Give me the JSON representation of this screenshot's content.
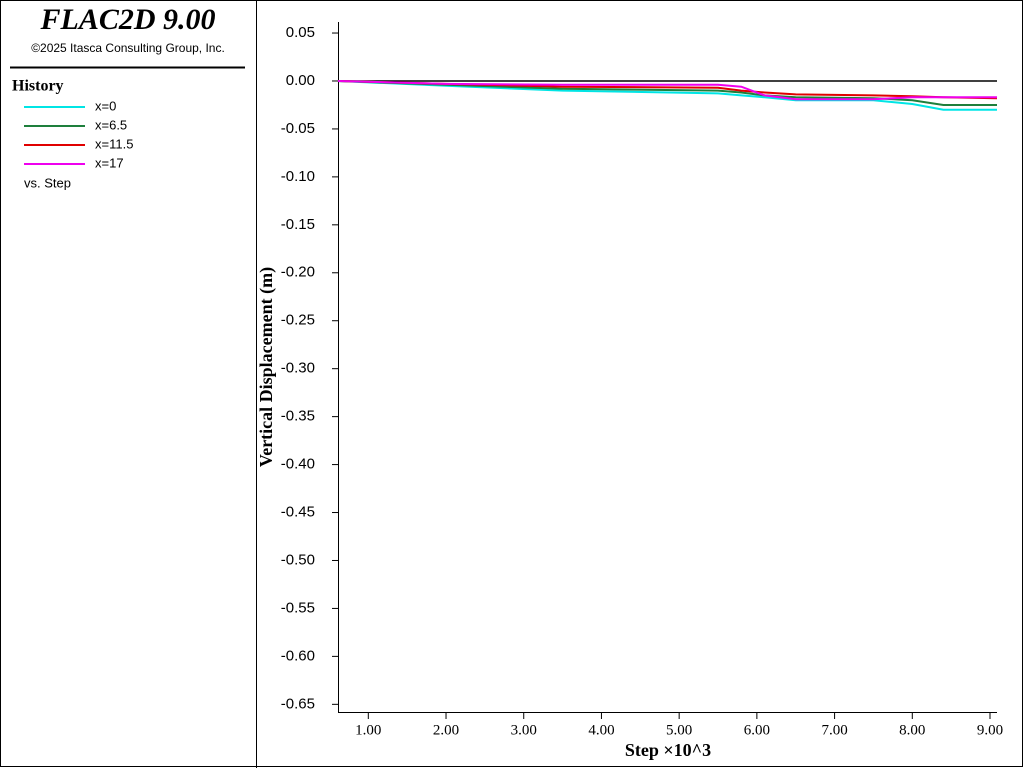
{
  "chart_data": {
    "type": "line",
    "title": "FLAC2D 9.00",
    "subtitle": "©2025 Itasca Consulting Group, Inc.",
    "legend_title": "History",
    "legend_footer": "vs. Step",
    "xlabel": "Step ×10^3",
    "ylabel": "Vertical Displacement (m)",
    "x": [
      0.61,
      2,
      3.5,
      5.5,
      5.8,
      6.1,
      6.5,
      7.5,
      8,
      8.4,
      9.09
    ],
    "series": [
      {
        "name": "x=0",
        "color": "#00e5e5",
        "values": [
          0,
          -0.005,
          -0.01,
          -0.013,
          -0.015,
          -0.017,
          -0.02,
          -0.02,
          -0.024,
          -0.03,
          -0.03
        ]
      },
      {
        "name": "x=6.5",
        "color": "#1e7f3c",
        "values": [
          0,
          -0.004,
          -0.008,
          -0.01,
          -0.012,
          -0.015,
          -0.017,
          -0.018,
          -0.02,
          -0.025,
          -0.025
        ]
      },
      {
        "name": "x=11.5",
        "color": "#e00000",
        "values": [
          0,
          -0.003,
          -0.006,
          -0.007,
          -0.01,
          -0.012,
          -0.014,
          -0.015,
          -0.016,
          -0.017,
          -0.018
        ]
      },
      {
        "name": "x=17",
        "color": "#ee00ee",
        "values": [
          0,
          -0.003,
          -0.004,
          -0.004,
          -0.006,
          -0.015,
          -0.019,
          -0.019,
          -0.017,
          -0.017,
          -0.017
        ]
      }
    ],
    "xlim": [
      0.61,
      9.09
    ],
    "xticks": [
      {
        "value": 1,
        "label": "1.00"
      },
      {
        "value": 2,
        "label": "2.00"
      },
      {
        "value": 3,
        "label": "3.00"
      },
      {
        "value": 4,
        "label": "4.00"
      },
      {
        "value": 5,
        "label": "5.00"
      },
      {
        "value": 6,
        "label": "6.00"
      },
      {
        "value": 7,
        "label": "7.00"
      },
      {
        "value": 8,
        "label": "8.00"
      },
      {
        "value": 9,
        "label": "9.00"
      }
    ],
    "ylim": [
      -0.658,
      0.0615
    ],
    "yticks": [
      0.05,
      {
        "value": 0,
        "label": "0.00"
      },
      -0.05,
      {
        "value": -0.1,
        "label": "-0.10"
      },
      -0.15,
      {
        "value": -0.2,
        "label": "-0.20"
      },
      -0.25,
      {
        "value": -0.3,
        "label": "-0.30"
      },
      -0.35,
      {
        "value": -0.4,
        "label": "-0.40"
      },
      -0.45,
      {
        "value": -0.5,
        "label": "-0.50"
      },
      -0.55,
      {
        "value": -0.6,
        "label": "-0.60"
      },
      -0.65
    ]
  }
}
